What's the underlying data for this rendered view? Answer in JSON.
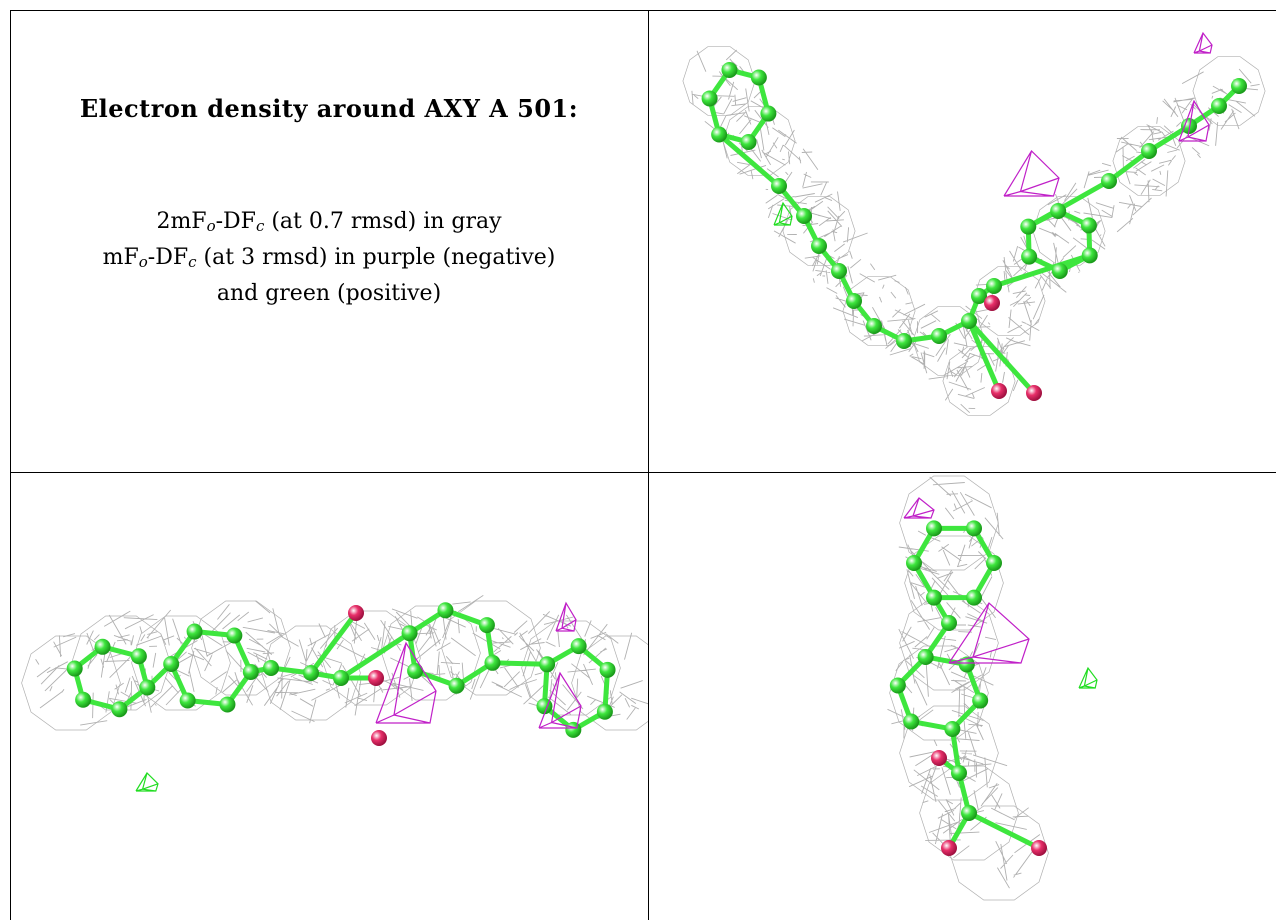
{
  "caption": {
    "title": "Electron density around AXY A 501:",
    "line1": {
      "prefix": "2mF",
      "sub1": "o",
      "mid": "-DF",
      "sub2": "c",
      "rest": " (at 0.7 rmsd) in gray"
    },
    "line2": {
      "prefix": "mF",
      "sub1": "o",
      "mid": "-DF",
      "sub2": "c",
      "rest": " (at 3 rmsd) in purple (negative)"
    },
    "line3": "and green (positive)"
  },
  "colors": {
    "mesh_gray": "#a8a8a8",
    "carbon_green": "#3ee63e",
    "oxygen_red": "#e8306a",
    "diff_neg_purple": "#c020c8",
    "diff_pos_green": "#22dd22"
  },
  "panels": [
    "top-right-view",
    "bottom-left-view",
    "bottom-right-view"
  ]
}
